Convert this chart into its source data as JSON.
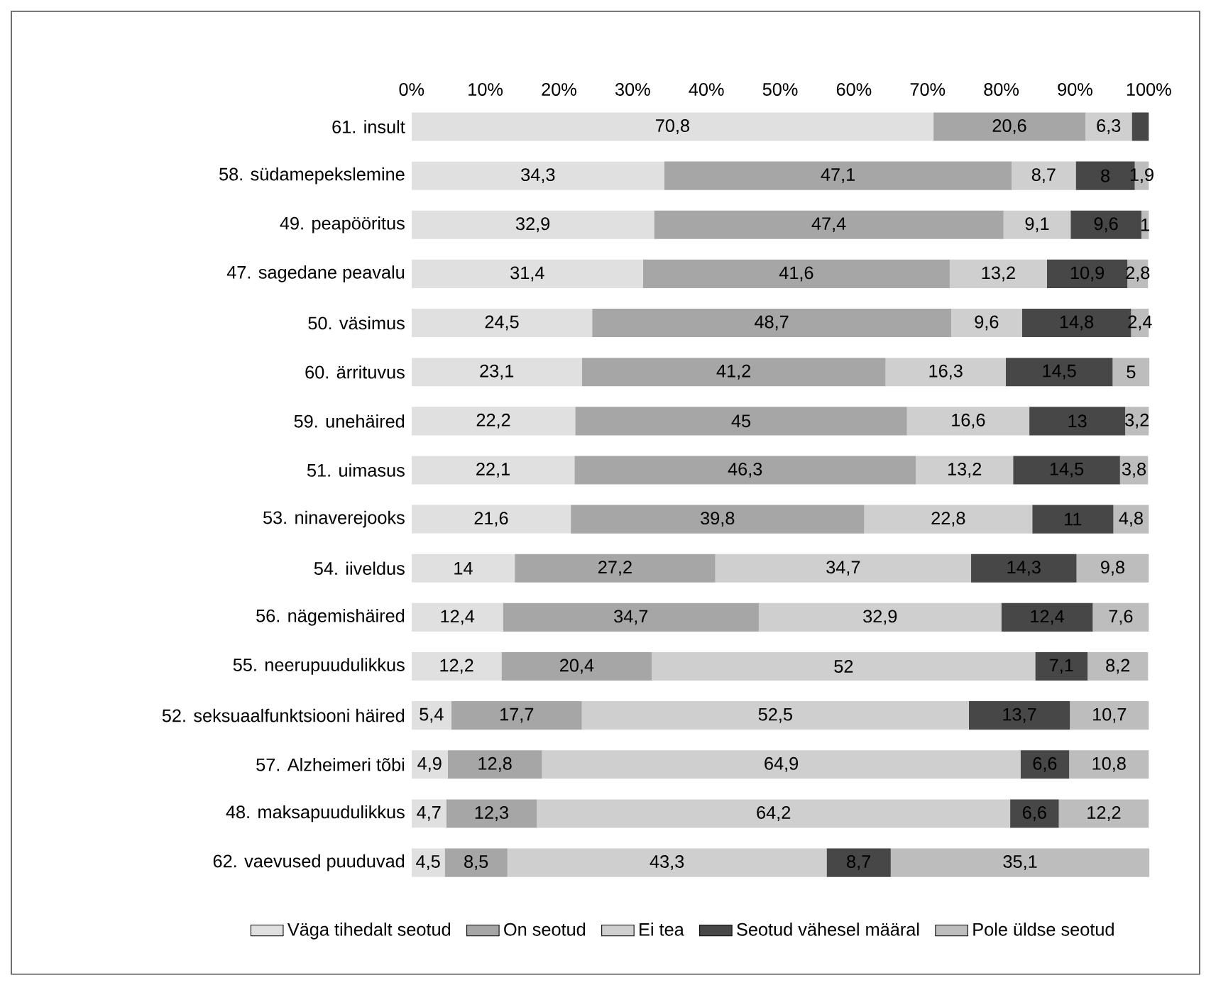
{
  "chart_data": {
    "type": "bar",
    "orientation": "horizontal",
    "stacked": true,
    "legend": "bottom",
    "categories": [
      "61. insult",
      "58. südamepekslemine",
      "49. peapööritus",
      "47. sagedane peavalu",
      "50. väsimus",
      "60. ärrituvus",
      "59. unehäired",
      "51. uimasus",
      "53. ninaverejooks",
      "54. iiveldus",
      "56. nägemishäired",
      "55. neerupuudulikkus",
      "52. seksuaalfunktsiooni häired",
      "57. Alzheimeri tõbi",
      "48. maksapuudulikkus",
      "62. vaevused puuduvad"
    ],
    "xlim": [
      0,
      100.1
    ],
    "xticks": [
      {
        "value": 0,
        "label": "0%"
      },
      {
        "value": 10,
        "label": "10%"
      },
      {
        "value": 20,
        "label": "20%"
      },
      {
        "value": 30,
        "label": "30%"
      },
      {
        "value": 40,
        "label": "40%"
      },
      {
        "value": 50,
        "label": "50%"
      },
      {
        "value": 60,
        "label": "60%"
      },
      {
        "value": 70,
        "label": "70%"
      },
      {
        "value": 80,
        "label": "80%"
      },
      {
        "value": 90,
        "label": "90%"
      },
      {
        "value": 100,
        "label": "100%"
      }
    ],
    "series": [
      {
        "name": "Väga tihedalt seotud",
        "color": "#e0e0e0",
        "values": [
          70.8,
          34.3,
          32.9,
          31.4,
          24.5,
          23.1,
          22.2,
          22.1,
          21.6,
          14,
          12.4,
          12.2,
          5.4,
          4.9,
          4.7,
          4.5
        ],
        "value_labels": [
          "70,8",
          "34,3",
          "32,9",
          "31,4",
          "24,5",
          "23,1",
          "22,2",
          "22,1",
          "21,6",
          "14",
          "12,4",
          "12,2",
          "5,4",
          "4,9",
          "4,7",
          "4,5"
        ]
      },
      {
        "name": "On seotud",
        "color": "#a6a6a6",
        "values": [
          20.6,
          47.1,
          47.4,
          41.6,
          48.7,
          41.2,
          45,
          46.3,
          39.8,
          27.2,
          34.7,
          20.4,
          17.7,
          12.8,
          12.3,
          8.5
        ],
        "value_labels": [
          "20,6",
          "47,1",
          "47,4",
          "41,6",
          "48,7",
          "41,2",
          "45",
          "46,3",
          "39,8",
          "27,2",
          "34,7",
          "20,4",
          "17,7",
          "12,8",
          "12,3",
          "8,5"
        ]
      },
      {
        "name": "Ei tea",
        "color": "#cfcfcf",
        "values": [
          6.3,
          8.7,
          9.1,
          13.2,
          9.6,
          16.3,
          16.6,
          13.2,
          22.8,
          34.7,
          32.9,
          52,
          52.5,
          64.9,
          64.2,
          43.3
        ],
        "value_labels": [
          "6,3",
          "8,7",
          "9,1",
          "13,2",
          "9,6",
          "16,3",
          "16,6",
          "13,2",
          "22,8",
          "34,7",
          "32,9",
          "52",
          "52,5",
          "64,9",
          "64,2",
          "43,3"
        ]
      },
      {
        "name": "Seotud vähesel määral",
        "color": "#474747",
        "values": [
          2.3,
          8,
          9.6,
          10.9,
          14.8,
          14.5,
          13,
          14.5,
          11,
          14.3,
          12.4,
          7.1,
          13.7,
          6.6,
          6.6,
          8.7
        ],
        "value_labels": [
          null,
          "8",
          "9,6",
          "10,9",
          "14,8",
          "14,5",
          "13",
          "14,5",
          "11",
          "14,3",
          "12,4",
          "7,1",
          "13,7",
          "6,6",
          "6,6",
          "8,7"
        ]
      },
      {
        "name": "Pole üldse seotud",
        "color": "#bdbdbd",
        "values": [
          null,
          1.9,
          1,
          2.8,
          2.4,
          5,
          3.2,
          3.8,
          4.8,
          9.8,
          7.6,
          8.2,
          10.7,
          10.8,
          12.2,
          35.1
        ],
        "value_labels": [
          null,
          "1,9",
          "1",
          "2,8",
          "2,4",
          "5",
          "3,2",
          "3,8",
          "4,8",
          "9,8",
          "7,6",
          "8,2",
          "10,7",
          "10,8",
          "12,2",
          "35,1"
        ]
      }
    ]
  }
}
